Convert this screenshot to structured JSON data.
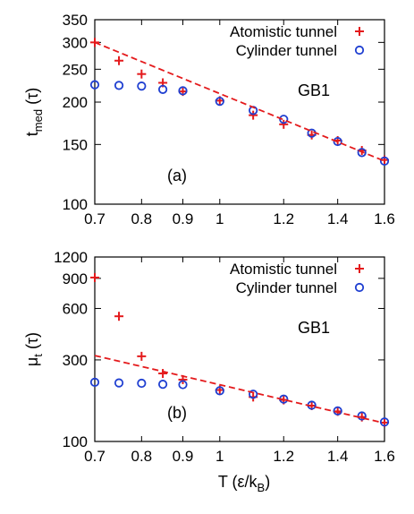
{
  "colors": {
    "atomistic": "#e41a1c",
    "cylinder": "#1f3fd1",
    "fit": "#e41a1c",
    "axis": "#000000"
  },
  "chart_data": [
    {
      "type": "scatter",
      "panel_label": "(a)",
      "annotation": "GB1",
      "ylabel_main": "t",
      "ylabel_sub": "med",
      "ylabel_unit": "(τ)",
      "xscale": "log",
      "yscale": "log",
      "xlim": [
        0.7,
        1.6
      ],
      "ylim": [
        100,
        350
      ],
      "x_ticks": [
        0.7,
        0.8,
        0.9,
        1,
        1.2,
        1.4,
        1.6
      ],
      "x_tick_labels": [
        "0.7",
        "0.8",
        "0.9",
        "1",
        "1.2",
        "1.4",
        "1.6"
      ],
      "y_ticks": [
        100,
        150,
        200,
        250,
        300,
        350
      ],
      "y_tick_labels": [
        "100",
        "150",
        "200",
        "250",
        "300",
        "350"
      ],
      "legend_position": "top-right",
      "series": [
        {
          "name": "Atomistic tunnel",
          "marker": "plus",
          "x": [
            0.7,
            0.75,
            0.8,
            0.85,
            0.9,
            1.0,
            1.1,
            1.2,
            1.3,
            1.4,
            1.5,
            1.6
          ],
          "y": [
            300,
            265,
            242,
            228,
            215,
            202,
            183,
            172,
            160,
            154,
            144,
            135
          ]
        },
        {
          "name": "Cylinder tunnel",
          "marker": "circle",
          "x": [
            0.7,
            0.75,
            0.8,
            0.85,
            0.9,
            1.0,
            1.1,
            1.2,
            1.3,
            1.4,
            1.5,
            1.6
          ],
          "y": [
            225,
            224,
            223,
            218,
            216,
            201,
            189,
            178,
            162,
            153,
            142,
            134
          ]
        },
        {
          "name": "",
          "marker": "dashed-line",
          "x": [
            0.7,
            1.6
          ],
          "y": [
            300,
            134
          ]
        }
      ]
    },
    {
      "type": "scatter",
      "panel_label": "(b)",
      "annotation": "GB1",
      "ylabel_main": "μ",
      "ylabel_sub": "t",
      "ylabel_unit": "(τ)",
      "xlabel": "T (ε/k",
      "xlabel_sub": "B",
      "xlabel_end": ")",
      "xscale": "log",
      "yscale": "log",
      "xlim": [
        0.7,
        1.6
      ],
      "ylim": [
        100,
        1200
      ],
      "x_ticks": [
        0.7,
        0.8,
        0.9,
        1,
        1.2,
        1.4,
        1.6
      ],
      "x_tick_labels": [
        "0.7",
        "0.8",
        "0.9",
        "1",
        "1.2",
        "1.4",
        "1.6"
      ],
      "y_ticks": [
        100,
        300,
        600,
        900,
        1200
      ],
      "y_tick_labels": [
        "100",
        "300",
        "600",
        "900",
        "1200"
      ],
      "legend_position": "top-right",
      "series": [
        {
          "name": "Atomistic tunnel",
          "marker": "plus",
          "x": [
            0.7,
            0.75,
            0.8,
            0.85,
            0.9,
            1.0,
            1.1,
            1.2,
            1.3,
            1.4,
            1.5,
            1.6
          ],
          "y": [
            910,
            540,
            315,
            250,
            230,
            200,
            182,
            175,
            162,
            150,
            139,
            129
          ]
        },
        {
          "name": "Cylinder tunnel",
          "marker": "circle",
          "x": [
            0.7,
            0.75,
            0.8,
            0.85,
            0.9,
            1.0,
            1.1,
            1.2,
            1.3,
            1.4,
            1.5,
            1.6
          ],
          "y": [
            222,
            220,
            219,
            216,
            215,
            198,
            189,
            177,
            163,
            151,
            141,
            130
          ]
        },
        {
          "name": "",
          "marker": "dashed-line",
          "x": [
            0.7,
            1.6
          ],
          "y": [
            318,
            128
          ]
        }
      ]
    }
  ]
}
